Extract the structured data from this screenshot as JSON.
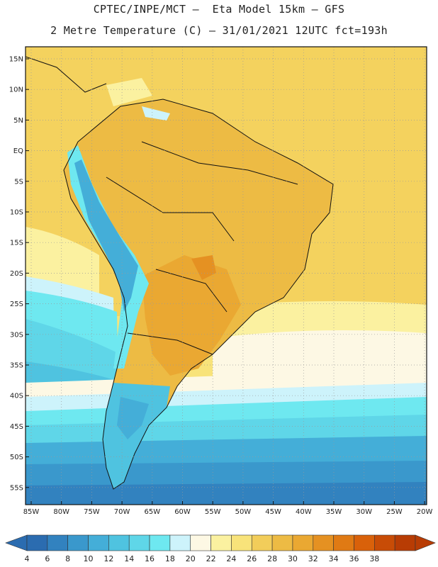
{
  "title": {
    "line1": "CPTEC/INPE/MCT –  Eta Model 15km – GFS",
    "line2": "2 Metre Temperature (C) – 31/01/2021 12UTC fct=193h"
  },
  "axes": {
    "lat_labels": [
      "15N",
      "10N",
      "5N",
      "EQ",
      "5S",
      "10S",
      "15S",
      "20S",
      "25S",
      "30S",
      "35S",
      "40S",
      "45S",
      "50S",
      "55S"
    ],
    "lon_labels": [
      "85W",
      "80W",
      "75W",
      "70W",
      "65W",
      "60W",
      "55W",
      "50W",
      "45W",
      "40W",
      "35W",
      "30W",
      "25W",
      "20W"
    ]
  },
  "colorbar": {
    "labels": [
      "4",
      "6",
      "8",
      "10",
      "12",
      "14",
      "16",
      "18",
      "20",
      "22",
      "24",
      "26",
      "28",
      "30",
      "32",
      "34",
      "36",
      "38"
    ],
    "colors": [
      "#2b6cb0",
      "#3282bf",
      "#3a98cc",
      "#44aed8",
      "#4fc3e0",
      "#5fd6e8",
      "#6ee8f0",
      "#cdf3fb",
      "#fdf8e4",
      "#fbf1a0",
      "#f8e37a",
      "#f2cd5a",
      "#edbb44",
      "#eaa832",
      "#e59122",
      "#e07a14",
      "#d9610a",
      "#c84c06",
      "#b83c04"
    ]
  }
}
